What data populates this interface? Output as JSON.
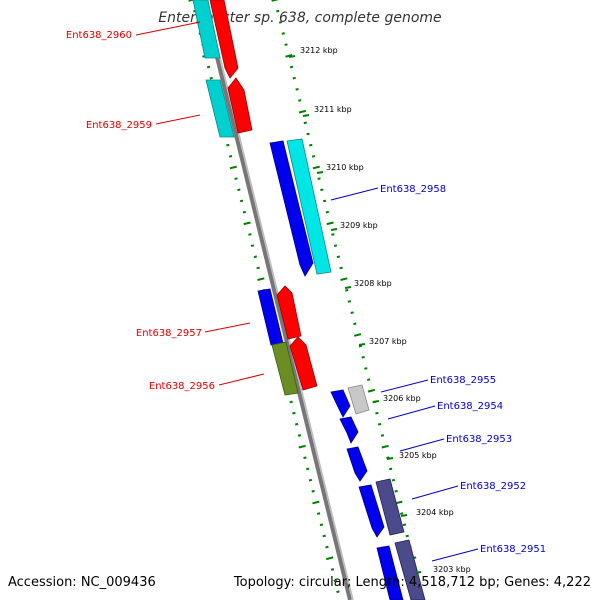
{
  "title": "Enterobacter sp. 638, complete genome",
  "footer": {
    "accession": "Accession: NC_009436",
    "topology": "Topology: circular; Length: 4,518,712 bp; Genes: 4,222"
  },
  "kbp_labels": [
    "3212 kbp",
    "3211 kbp",
    "3210 kbp",
    "3209 kbp",
    "3208 kbp",
    "3207 kbp",
    "3206 kbp",
    "3205 kbp",
    "3204 kbp",
    "3203 kbp"
  ],
  "gene_labels": [
    {
      "text": "Ent638_2960",
      "color": "#dd0000"
    },
    {
      "text": "Ent638_2959",
      "color": "#dd0000"
    },
    {
      "text": "Ent638_2958",
      "color": "#0000cc"
    },
    {
      "text": "Ent638_2957",
      "color": "#dd0000"
    },
    {
      "text": "Ent638_2956",
      "color": "#dd0000"
    },
    {
      "text": "Ent638_2955",
      "color": "#0000cc"
    },
    {
      "text": "Ent638_2954",
      "color": "#0000cc"
    },
    {
      "text": "Ent638_2953",
      "color": "#0000cc"
    },
    {
      "text": "Ent638_2952",
      "color": "#0000cc"
    },
    {
      "text": "Ent638_2951",
      "color": "#0000cc"
    }
  ],
  "colors": {
    "forward_strand": "#ff0000",
    "reverse_strand": "#0000ee",
    "cyan_feature": "#00e5e5",
    "olive_feature": "#6b8e23",
    "gray_feature": "#c0c0c0",
    "slate_feature": "#4b4b8c",
    "backbone": "#888888",
    "ticks": "#008000"
  }
}
